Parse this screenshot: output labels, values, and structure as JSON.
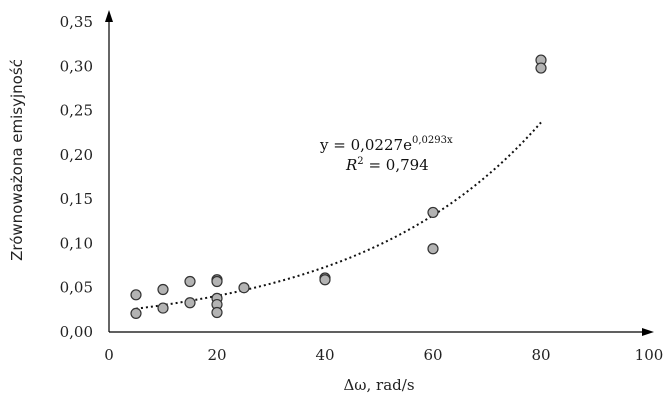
{
  "chart_data": {
    "type": "scatter",
    "title": "",
    "xlabel": "Δω, rad/s",
    "ylabel": "Zrównoważona emisyjność",
    "xlim": [
      0,
      100
    ],
    "ylim": [
      0,
      0.35
    ],
    "x_ticks": [
      0,
      20,
      40,
      60,
      80,
      100
    ],
    "x_tick_labels": [
      "0",
      "20",
      "40",
      "60",
      "80",
      "100"
    ],
    "y_ticks": [
      0,
      0.05,
      0.1,
      0.15,
      0.2,
      0.25,
      0.3,
      0.35
    ],
    "y_tick_labels": [
      "0,00",
      "0,05",
      "0,10",
      "0,15",
      "0,20",
      "0,25",
      "0,30",
      "0,35"
    ],
    "grid": false,
    "points": [
      {
        "x": 5,
        "y": 0.042
      },
      {
        "x": 5,
        "y": 0.021
      },
      {
        "x": 10,
        "y": 0.048
      },
      {
        "x": 10,
        "y": 0.027
      },
      {
        "x": 15,
        "y": 0.057
      },
      {
        "x": 15,
        "y": 0.033
      },
      {
        "x": 20,
        "y": 0.059
      },
      {
        "x": 20,
        "y": 0.057
      },
      {
        "x": 20,
        "y": 0.038
      },
      {
        "x": 20,
        "y": 0.031
      },
      {
        "x": 20,
        "y": 0.022
      },
      {
        "x": 25,
        "y": 0.05
      },
      {
        "x": 40,
        "y": 0.061
      },
      {
        "x": 40,
        "y": 0.059
      },
      {
        "x": 60,
        "y": 0.135
      },
      {
        "x": 60,
        "y": 0.094
      },
      {
        "x": 80,
        "y": 0.307
      },
      {
        "x": 80,
        "y": 0.298
      }
    ],
    "trendline": {
      "type": "exponential",
      "a": 0.0227,
      "b": 0.0293,
      "x_range": [
        5,
        80
      ],
      "style": "dotted",
      "equation_prefix": "y = 0,0227e",
      "equation_exponent": "0,0293x",
      "r2_symbol": "R",
      "r2_sup": "2",
      "r2_value": " = 0,794"
    },
    "colors": {
      "marker_fill": "#b3b3b3",
      "marker_stroke": "#333333",
      "axis": "#000000",
      "trendline": "#111111"
    }
  }
}
